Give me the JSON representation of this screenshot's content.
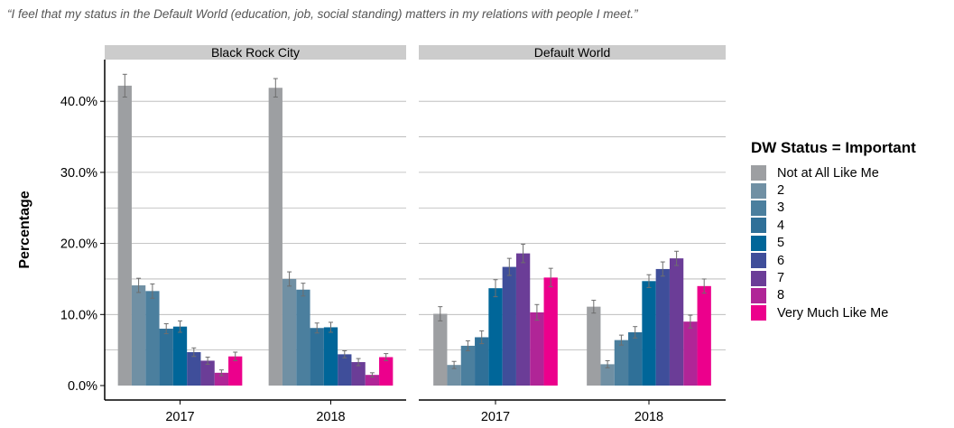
{
  "caption": "“I feel that my status in the Default World (education, job, social standing) matters in my relations with people I meet.”",
  "chart_data": {
    "type": "bar",
    "ylabel": "Percentage",
    "ylim": [
      0,
      0.44
    ],
    "yticks": [
      0,
      0.1,
      0.2,
      0.3,
      0.4
    ],
    "ytick_labels": [
      "0.0%",
      "10.0%",
      "20.0%",
      "30.0%",
      "40.0%"
    ],
    "grid": true,
    "legend_title": "DW Status = Important",
    "legend_position": "right",
    "categories": [
      "2017",
      "2018"
    ],
    "panels": [
      {
        "name": "Black Rock City",
        "series_values": [
          [
            0.422,
            0.419
          ],
          [
            0.141,
            0.15
          ],
          [
            0.133,
            0.135
          ],
          [
            0.08,
            0.081
          ],
          [
            0.083,
            0.082
          ],
          [
            0.047,
            0.044
          ],
          [
            0.035,
            0.033
          ],
          [
            0.018,
            0.015
          ],
          [
            0.041,
            0.04
          ]
        ],
        "errors": [
          [
            0.016,
            0.013
          ],
          [
            0.01,
            0.01
          ],
          [
            0.01,
            0.009
          ],
          [
            0.007,
            0.007
          ],
          [
            0.008,
            0.007
          ],
          [
            0.006,
            0.005
          ],
          [
            0.005,
            0.005
          ],
          [
            0.004,
            0.003
          ],
          [
            0.006,
            0.005
          ]
        ]
      },
      {
        "name": "Default World",
        "series_values": [
          [
            0.101,
            0.111
          ],
          [
            0.029,
            0.03
          ],
          [
            0.056,
            0.064
          ],
          [
            0.068,
            0.075
          ],
          [
            0.137,
            0.147
          ],
          [
            0.167,
            0.164
          ],
          [
            0.186,
            0.179
          ],
          [
            0.103,
            0.09
          ],
          [
            0.152,
            0.14
          ]
        ],
        "errors": [
          [
            0.01,
            0.009
          ],
          [
            0.005,
            0.005
          ],
          [
            0.007,
            0.007
          ],
          [
            0.009,
            0.008
          ],
          [
            0.012,
            0.009
          ],
          [
            0.012,
            0.01
          ],
          [
            0.013,
            0.01
          ],
          [
            0.011,
            0.009
          ],
          [
            0.013,
            0.01
          ]
        ]
      }
    ],
    "series": [
      {
        "name": "Not at All Like Me",
        "color": "#9d9fa2"
      },
      {
        "name": "2",
        "color": "#7090a4"
      },
      {
        "name": "3",
        "color": "#4b7f9e"
      },
      {
        "name": "4",
        "color": "#2f7098"
      },
      {
        "name": "5",
        "color": "#006699"
      },
      {
        "name": "6",
        "color": "#3f4e9a"
      },
      {
        "name": "7",
        "color": "#6b3d97"
      },
      {
        "name": "8",
        "color": "#b02597"
      },
      {
        "name": "Very Much Like Me",
        "color": "#ec008c"
      }
    ]
  }
}
